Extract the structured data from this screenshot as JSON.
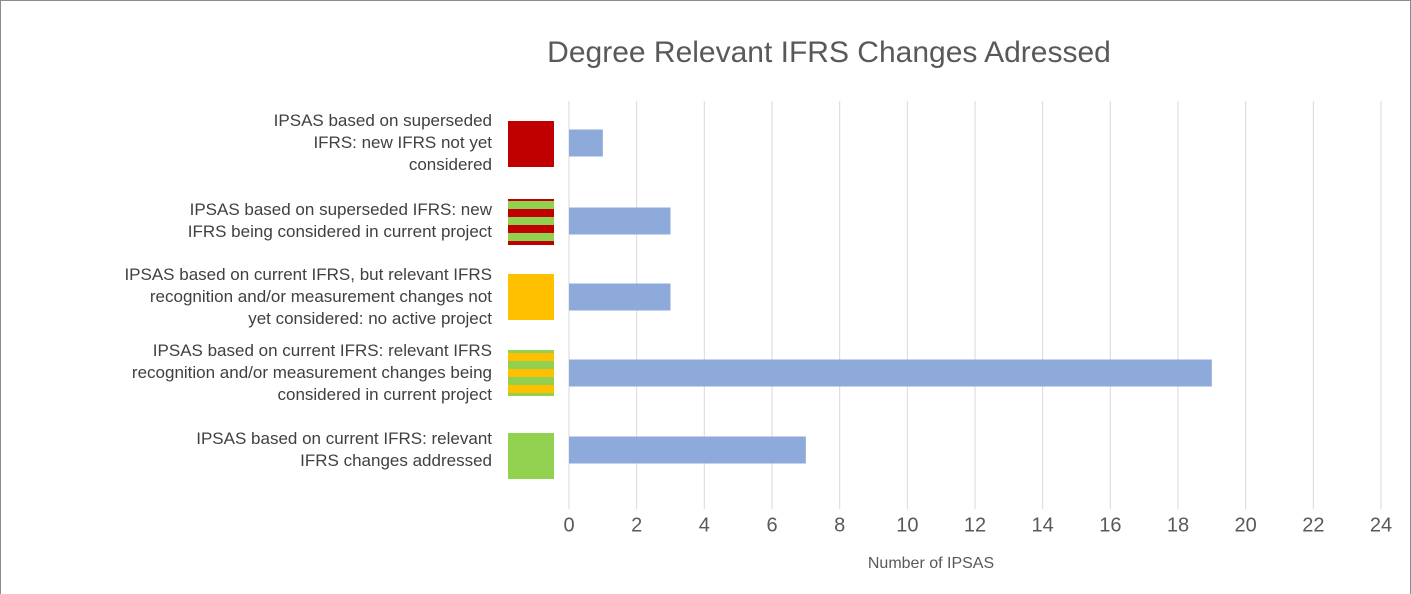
{
  "chart_data": {
    "type": "barh",
    "title": "Degree Relevant IFRS Changes Adressed",
    "categories": [
      "IPSAS based on superseded\nIFRS: new IFRS not yet\nconsidered",
      "IPSAS based on superseded IFRS: new\nIFRS being considered in current project",
      "IPSAS based on current IFRS, but relevant IFRS\nrecognition and/or measurement changes not\nyet considered: no active project",
      "IPSAS based on current IFRS: relevant IFRS\nrecognition and/or measurement changes being\nconsidered in current project",
      "IPSAS based on current IFRS: relevant\nIFRS changes addressed"
    ],
    "values": [
      1,
      3,
      3,
      19,
      7
    ],
    "color": "#8eaadb",
    "xlabel": "Number of IPSAS",
    "xlim": [
      0,
      24
    ],
    "xticks": [
      0,
      2,
      4,
      6,
      8,
      10,
      12,
      14,
      16,
      18,
      20,
      22,
      24
    ],
    "grid": true
  }
}
